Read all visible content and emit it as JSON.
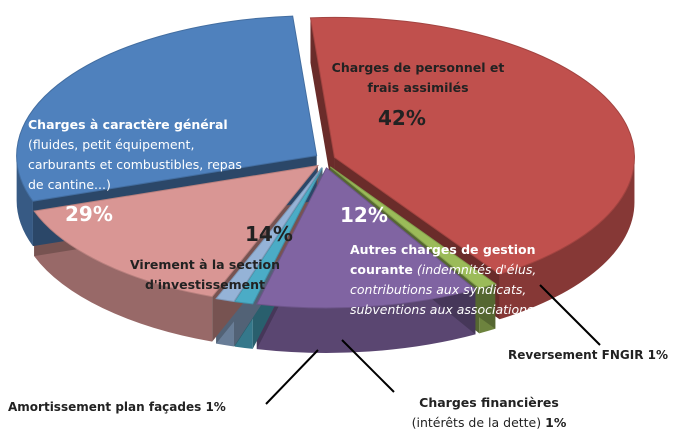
{
  "chart_data": {
    "type": "pie",
    "categories": [
      "Charges de personnel et frais assimilés",
      "Reversement FNGIR",
      "Autres charges de gestion courante",
      "Charges financières",
      "Amortissement plan façades",
      "Virement à la section d'investissement",
      "Charges à caractère général"
    ],
    "notes": [
      null,
      null,
      "(indemnités d'élus, contributions aux syndicats, subventions aux associations...)",
      "(intérêts de la dette)",
      null,
      null,
      "(fluides, petit équipement, carburants et combustibles, repas de cantine...)"
    ],
    "values": [
      42,
      1,
      12,
      1,
      1,
      14,
      29
    ],
    "value_labels": [
      "42%",
      "1%",
      "12%",
      "1%",
      "1%",
      "14%",
      "29%"
    ],
    "colors": [
      "#c0504d",
      "#9bbb59",
      "#8064a2",
      "#4bacc6",
      "#95b3d7",
      "#d99694",
      "#4f81bd"
    ]
  }
}
